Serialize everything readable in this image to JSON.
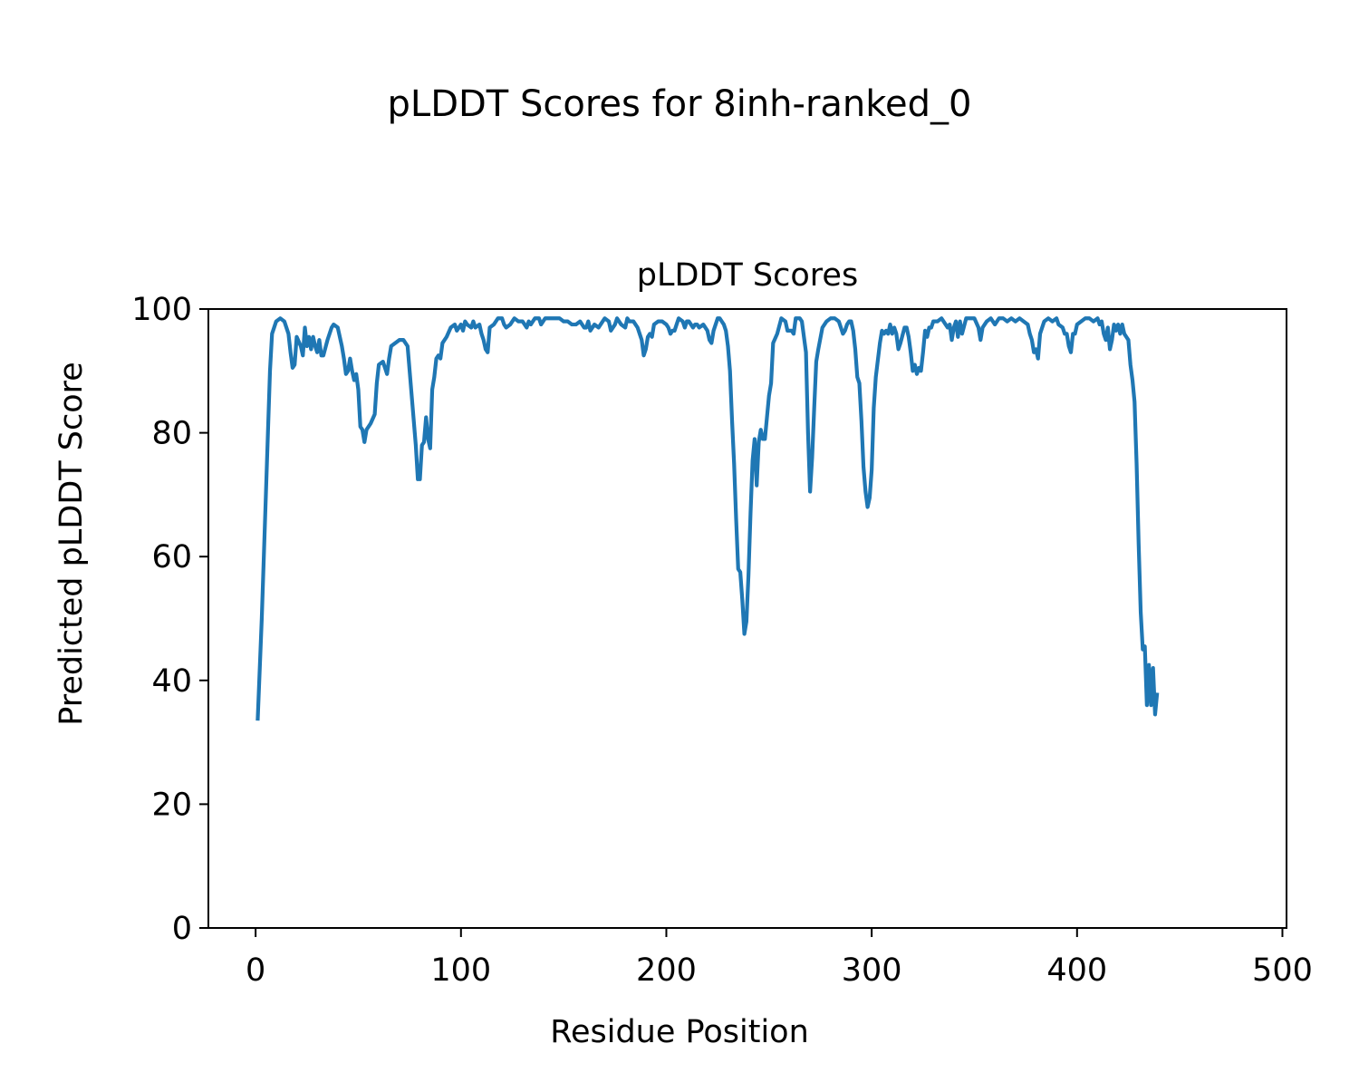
{
  "figure": {
    "suptitle": "pLDDT Scores for 8inh-ranked_0"
  },
  "chart_data": {
    "type": "line",
    "title": "pLDDT Scores",
    "xlabel": "Residue Position",
    "ylabel": "Predicted pLDDT Score",
    "xlim": [
      -23,
      502
    ],
    "ylim": [
      0,
      100
    ],
    "xticks": [
      0,
      100,
      200,
      300,
      400,
      500
    ],
    "yticks": [
      0,
      20,
      40,
      60,
      80,
      100
    ],
    "grid": false,
    "line_color": "#1f77b4",
    "series": [
      {
        "points": [
          [
            1,
            33.5
          ],
          [
            3,
            50
          ],
          [
            5,
            70
          ],
          [
            6,
            80
          ],
          [
            7,
            90
          ],
          [
            8,
            96
          ],
          [
            10,
            98
          ],
          [
            12,
            98.5
          ],
          [
            14,
            98
          ],
          [
            16,
            96
          ],
          [
            17,
            93
          ],
          [
            18,
            90.5
          ],
          [
            19,
            91
          ],
          [
            20,
            95.5
          ],
          [
            22,
            94
          ],
          [
            23,
            92.5
          ],
          [
            24,
            97
          ],
          [
            25,
            94
          ],
          [
            26,
            95.5
          ],
          [
            27,
            93.5
          ],
          [
            28,
            95.5
          ],
          [
            29,
            94
          ],
          [
            30,
            93
          ],
          [
            31,
            95
          ],
          [
            32,
            92.5
          ],
          [
            33,
            92.5
          ],
          [
            35,
            95
          ],
          [
            37,
            97
          ],
          [
            38,
            97.5
          ],
          [
            40,
            97
          ],
          [
            42,
            94
          ],
          [
            43,
            92
          ],
          [
            44,
            89.5
          ],
          [
            45,
            90
          ],
          [
            46,
            92
          ],
          [
            47,
            90
          ],
          [
            48,
            88.5
          ],
          [
            49,
            89.5
          ],
          [
            50,
            87
          ],
          [
            51,
            81
          ],
          [
            52,
            80.5
          ],
          [
            53,
            78.5
          ],
          [
            54,
            80.5
          ],
          [
            56,
            81.5
          ],
          [
            58,
            83
          ],
          [
            59,
            88
          ],
          [
            60,
            91
          ],
          [
            62,
            91.5
          ],
          [
            63,
            90.5
          ],
          [
            64,
            89.5
          ],
          [
            65,
            92
          ],
          [
            66,
            94
          ],
          [
            68,
            94.5
          ],
          [
            70,
            95
          ],
          [
            72,
            95
          ],
          [
            74,
            94
          ],
          [
            76,
            86
          ],
          [
            78,
            78
          ],
          [
            79,
            72.5
          ],
          [
            80,
            72.5
          ],
          [
            81,
            78
          ],
          [
            82,
            78.5
          ],
          [
            83,
            82.5
          ],
          [
            84,
            79
          ],
          [
            85,
            77.5
          ],
          [
            86,
            87
          ],
          [
            87,
            89
          ],
          [
            88,
            92
          ],
          [
            89,
            92.5
          ],
          [
            90,
            92
          ],
          [
            91,
            94.5
          ],
          [
            93,
            95.5
          ],
          [
            95,
            97
          ],
          [
            97,
            97.5
          ],
          [
            98,
            96.5
          ],
          [
            100,
            97.5
          ],
          [
            101,
            96.5
          ],
          [
            102,
            98
          ],
          [
            103,
            97.5
          ],
          [
            105,
            97
          ],
          [
            106,
            98
          ],
          [
            107,
            97
          ],
          [
            109,
            97.5
          ],
          [
            110,
            96
          ],
          [
            111,
            95
          ],
          [
            112,
            93.5
          ],
          [
            113,
            93
          ],
          [
            114,
            97
          ],
          [
            116,
            97.5
          ],
          [
            118,
            98.5
          ],
          [
            120,
            98.5
          ],
          [
            121,
            97.5
          ],
          [
            122,
            97
          ],
          [
            124,
            97.5
          ],
          [
            126,
            98.5
          ],
          [
            128,
            98
          ],
          [
            130,
            98
          ],
          [
            131,
            97.5
          ],
          [
            132,
            97
          ],
          [
            133,
            98
          ],
          [
            134,
            97.5
          ],
          [
            136,
            98.5
          ],
          [
            138,
            98.5
          ],
          [
            139,
            97.5
          ],
          [
            141,
            98.5
          ],
          [
            144,
            98.5
          ],
          [
            146,
            98.5
          ],
          [
            148,
            98.5
          ],
          [
            150,
            98
          ],
          [
            152,
            98
          ],
          [
            154,
            97.5
          ],
          [
            156,
            97.5
          ],
          [
            158,
            98
          ],
          [
            160,
            97
          ],
          [
            161,
            97
          ],
          [
            162,
            98
          ],
          [
            163,
            96.5
          ],
          [
            165,
            97.5
          ],
          [
            167,
            97
          ],
          [
            168,
            97.5
          ],
          [
            170,
            98.5
          ],
          [
            172,
            98
          ],
          [
            173,
            96.5
          ],
          [
            175,
            97.5
          ],
          [
            176,
            98.5
          ],
          [
            178,
            97.5
          ],
          [
            180,
            97
          ],
          [
            181,
            98.5
          ],
          [
            182,
            98
          ],
          [
            184,
            98
          ],
          [
            186,
            97
          ],
          [
            187,
            96
          ],
          [
            188,
            95
          ],
          [
            189,
            92.5
          ],
          [
            190,
            93.5
          ],
          [
            191,
            95.5
          ],
          [
            192,
            96
          ],
          [
            193,
            95.5
          ],
          [
            194,
            97.5
          ],
          [
            196,
            98
          ],
          [
            198,
            98
          ],
          [
            200,
            97.5
          ],
          [
            201,
            97
          ],
          [
            202,
            96
          ],
          [
            203,
            96.5
          ],
          [
            204,
            96.5
          ],
          [
            205,
            97.5
          ],
          [
            206,
            98.5
          ],
          [
            208,
            98
          ],
          [
            209,
            97
          ],
          [
            210,
            98
          ],
          [
            211,
            98
          ],
          [
            212,
            97.5
          ],
          [
            213,
            97
          ],
          [
            214,
            97.5
          ],
          [
            215,
            97.5
          ],
          [
            216,
            97
          ],
          [
            218,
            97.5
          ],
          [
            220,
            96.5
          ],
          [
            221,
            95
          ],
          [
            222,
            94.5
          ],
          [
            223,
            96.5
          ],
          [
            224,
            97.5
          ],
          [
            225,
            98.5
          ],
          [
            226,
            98.5
          ],
          [
            228,
            97.5
          ],
          [
            229,
            96.5
          ],
          [
            230,
            94
          ],
          [
            231,
            90
          ],
          [
            232,
            82
          ],
          [
            233,
            75
          ],
          [
            234,
            66
          ],
          [
            235,
            58
          ],
          [
            236,
            57.5
          ],
          [
            237,
            53
          ],
          [
            238,
            47.5
          ],
          [
            239,
            49.5
          ],
          [
            240,
            57
          ],
          [
            241,
            67
          ],
          [
            242,
            75.5
          ],
          [
            243,
            79
          ],
          [
            244,
            71.5
          ],
          [
            245,
            78.5
          ],
          [
            246,
            80.5
          ],
          [
            247,
            79
          ],
          [
            248,
            79
          ],
          [
            249,
            82.5
          ],
          [
            250,
            86
          ],
          [
            251,
            88
          ],
          [
            252,
            94.5
          ],
          [
            254,
            96
          ],
          [
            256,
            98.5
          ],
          [
            258,
            98
          ],
          [
            259,
            96.5
          ],
          [
            261,
            96.5
          ],
          [
            262,
            96
          ],
          [
            263,
            98.5
          ],
          [
            265,
            98.5
          ],
          [
            266,
            98
          ],
          [
            268,
            93
          ],
          [
            269,
            80
          ],
          [
            270,
            70.5
          ],
          [
            271,
            76
          ],
          [
            272,
            84
          ],
          [
            273,
            91.5
          ],
          [
            274,
            93.5
          ],
          [
            276,
            97
          ],
          [
            278,
            98
          ],
          [
            280,
            98.5
          ],
          [
            282,
            98.5
          ],
          [
            284,
            98
          ],
          [
            285,
            97
          ],
          [
            286,
            96
          ],
          [
            287,
            96.5
          ],
          [
            288,
            97.5
          ],
          [
            289,
            98
          ],
          [
            290,
            98
          ],
          [
            291,
            96.5
          ],
          [
            292,
            93.5
          ],
          [
            293,
            89
          ],
          [
            294,
            88
          ],
          [
            295,
            82
          ],
          [
            296,
            74.5
          ],
          [
            297,
            70.5
          ],
          [
            298,
            68
          ],
          [
            299,
            69.5
          ],
          [
            300,
            74
          ],
          [
            301,
            84
          ],
          [
            302,
            89
          ],
          [
            304,
            94.5
          ],
          [
            305,
            96.5
          ],
          [
            306,
            96
          ],
          [
            307,
            96.5
          ],
          [
            308,
            96
          ],
          [
            309,
            97.5
          ],
          [
            310,
            96
          ],
          [
            311,
            97
          ],
          [
            312,
            96
          ],
          [
            313,
            93.5
          ],
          [
            314,
            94.5
          ],
          [
            316,
            97
          ],
          [
            317,
            97
          ],
          [
            318,
            95.5
          ],
          [
            319,
            93
          ],
          [
            320,
            90
          ],
          [
            321,
            91
          ],
          [
            322,
            89.5
          ],
          [
            323,
            90.5
          ],
          [
            324,
            90
          ],
          [
            325,
            93
          ],
          [
            326,
            96.5
          ],
          [
            327,
            95.5
          ],
          [
            328,
            97
          ],
          [
            329,
            97
          ],
          [
            330,
            98
          ],
          [
            332,
            98
          ],
          [
            334,
            98.5
          ],
          [
            336,
            97.5
          ],
          [
            337,
            97
          ],
          [
            338,
            97.5
          ],
          [
            339,
            95
          ],
          [
            340,
            97
          ],
          [
            341,
            98
          ],
          [
            342,
            95.5
          ],
          [
            343,
            98
          ],
          [
            344,
            96
          ],
          [
            346,
            98.5
          ],
          [
            348,
            98.5
          ],
          [
            350,
            98.5
          ],
          [
            352,
            97
          ],
          [
            353,
            95
          ],
          [
            354,
            97
          ],
          [
            356,
            98
          ],
          [
            358,
            98.5
          ],
          [
            360,
            97.5
          ],
          [
            362,
            98.5
          ],
          [
            364,
            98.5
          ],
          [
            366,
            98
          ],
          [
            368,
            98.5
          ],
          [
            370,
            98
          ],
          [
            372,
            98.5
          ],
          [
            374,
            98
          ],
          [
            376,
            97.5
          ],
          [
            377,
            96
          ],
          [
            378,
            95
          ],
          [
            379,
            93
          ],
          [
            380,
            93.5
          ],
          [
            381,
            92
          ],
          [
            382,
            96
          ],
          [
            384,
            98
          ],
          [
            386,
            98.5
          ],
          [
            388,
            98
          ],
          [
            390,
            98.5
          ],
          [
            391,
            97.5
          ],
          [
            393,
            97
          ],
          [
            394,
            96
          ],
          [
            395,
            96
          ],
          [
            396,
            94
          ],
          [
            397,
            93
          ],
          [
            398,
            96
          ],
          [
            399,
            96
          ],
          [
            400,
            97.5
          ],
          [
            402,
            98
          ],
          [
            404,
            98.5
          ],
          [
            406,
            98.5
          ],
          [
            408,
            98
          ],
          [
            410,
            98.5
          ],
          [
            411,
            97.5
          ],
          [
            412,
            98
          ],
          [
            413,
            96
          ],
          [
            414,
            95
          ],
          [
            415,
            97
          ],
          [
            416,
            93.5
          ],
          [
            417,
            95
          ],
          [
            418,
            97.5
          ],
          [
            419,
            96.5
          ],
          [
            420,
            97.5
          ],
          [
            421,
            96
          ],
          [
            422,
            97.5
          ],
          [
            423,
            96
          ],
          [
            424,
            95.5
          ],
          [
            425,
            95
          ],
          [
            426,
            91
          ],
          [
            427,
            88.5
          ],
          [
            428,
            85
          ],
          [
            429,
            75
          ],
          [
            430,
            62
          ],
          [
            431,
            51
          ],
          [
            432,
            45
          ],
          [
            433,
            45.5
          ],
          [
            434,
            36
          ],
          [
            435,
            42.5
          ],
          [
            436,
            36
          ],
          [
            437,
            42
          ],
          [
            438,
            34.5
          ],
          [
            439,
            38
          ]
        ]
      }
    ]
  }
}
